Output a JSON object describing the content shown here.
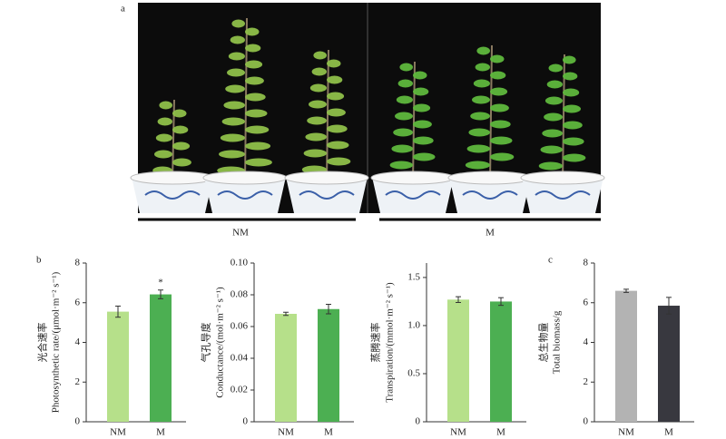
{
  "figure": {
    "panel_a": "a",
    "panel_b": "b",
    "panel_c": "c",
    "groups": [
      "NM",
      "M"
    ]
  },
  "chart_data": [
    {
      "type": "bar",
      "ylabel_cn": "光合速率",
      "ylabel": "Photosynthetic rate/(μmol·m⁻² s⁻¹)",
      "categories": [
        "NM",
        "M"
      ],
      "values": [
        5.55,
        6.42
      ],
      "errors": [
        0.28,
        0.22
      ],
      "colors": [
        "#b6e08a",
        "#4caf52"
      ],
      "ylim": [
        0,
        8
      ],
      "yticks": [
        0,
        2,
        4,
        6,
        8
      ],
      "annotations": [
        {
          "text": "*",
          "x": "M"
        }
      ]
    },
    {
      "type": "bar",
      "ylabel_cn": "气孔导度",
      "ylabel": "Conductance/(mol·m⁻² s⁻¹)",
      "categories": [
        "NM",
        "M"
      ],
      "values": [
        0.068,
        0.071
      ],
      "errors": [
        0.001,
        0.003
      ],
      "colors": [
        "#b6e08a",
        "#4caf52"
      ],
      "ylim": [
        0,
        0.1
      ],
      "yticks": [
        0,
        0.02,
        0.04,
        0.06,
        0.08,
        {
          "value": 0.1,
          "label": "0.10"
        }
      ]
    },
    {
      "type": "bar",
      "ylabel_cn": "蒸腾速率",
      "ylabel": "Transpiration/(mmol·m⁻² s⁻¹)",
      "categories": [
        "NM",
        "M"
      ],
      "values": [
        1.27,
        1.25
      ],
      "errors": [
        0.03,
        0.04
      ],
      "colors": [
        "#b6e08a",
        "#4caf52"
      ],
      "ylim": [
        0,
        1.65
      ],
      "yticks": [
        0,
        0.5,
        {
          "value": 1,
          "label": "1.0"
        },
        1.5
      ]
    },
    {
      "type": "bar",
      "ylabel_cn": "总生物量",
      "ylabel": "Total biomass/g",
      "categories": [
        "NM",
        "M"
      ],
      "values": [
        6.6,
        5.85
      ],
      "errors": [
        0.08,
        0.42
      ],
      "colors": [
        "#b3b3b3",
        "#38383f"
      ],
      "ylim": [
        0,
        8
      ],
      "yticks": [
        0,
        2,
        4,
        6,
        8
      ]
    }
  ]
}
